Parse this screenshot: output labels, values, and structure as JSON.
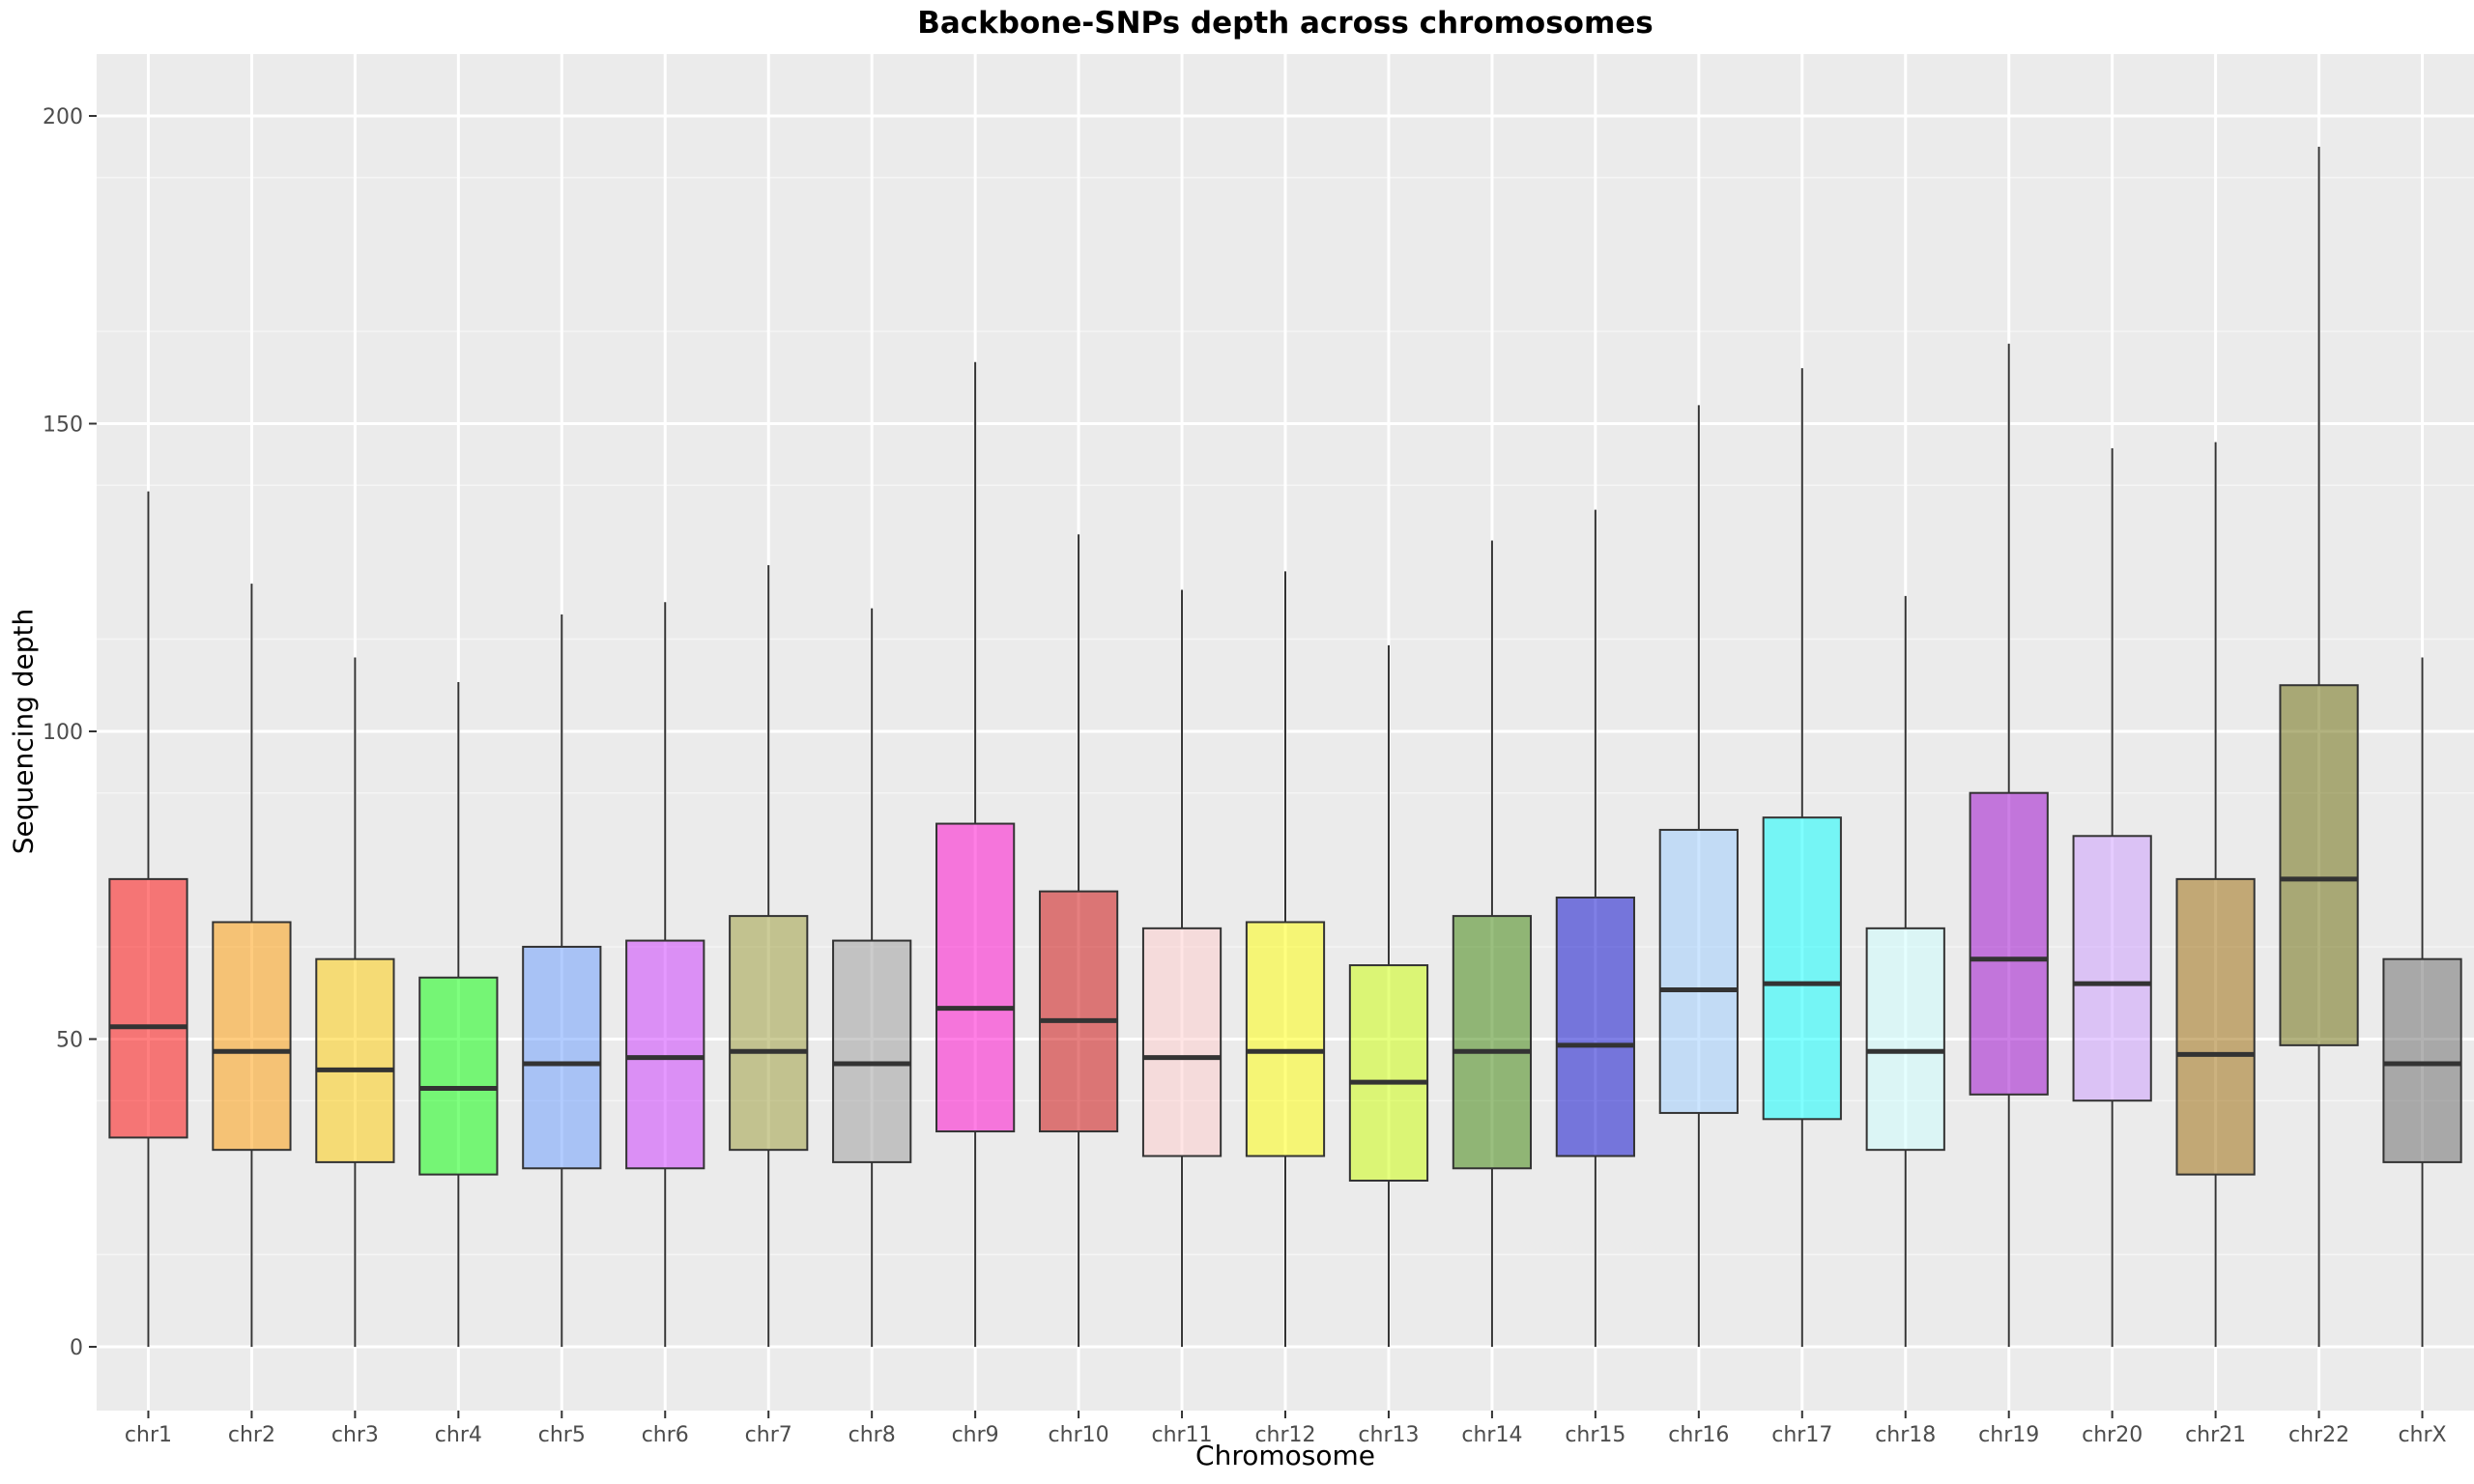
{
  "chart_data": {
    "type": "box",
    "title": "Backbone-SNPs depth across chromosomes",
    "xlabel": "Chromosome",
    "ylabel": "Sequencing depth",
    "ylim": [
      -10,
      200
    ],
    "yticks": [
      0,
      50,
      100,
      150,
      200
    ],
    "grid": true,
    "legend": "none",
    "box_alpha": 0.5,
    "categories": [
      "chr1",
      "chr2",
      "chr3",
      "chr4",
      "chr5",
      "chr6",
      "chr7",
      "chr8",
      "chr9",
      "chr10",
      "chr11",
      "chr12",
      "chr13",
      "chr14",
      "chr15",
      "chr16",
      "chr17",
      "chr18",
      "chr19",
      "chr20",
      "chr21",
      "chr22",
      "chrX"
    ],
    "boxes": [
      {
        "min": 0,
        "q1": 34,
        "median": 52,
        "q3": 76,
        "max": 139,
        "color": "#ff0000"
      },
      {
        "min": 0,
        "q1": 32,
        "median": 48,
        "q3": 69,
        "max": 124,
        "color": "#ff9900"
      },
      {
        "min": 0,
        "q1": 30,
        "median": 45,
        "q3": 63,
        "max": 112,
        "color": "#ffcc00"
      },
      {
        "min": 0,
        "q1": 28,
        "median": 42,
        "q3": 60,
        "max": 108,
        "color": "#00ff00"
      },
      {
        "min": 0,
        "q1": 29,
        "median": 46,
        "q3": 65,
        "max": 119,
        "color": "#6699ff"
      },
      {
        "min": 0,
        "q1": 29,
        "median": 47,
        "q3": 66,
        "max": 121,
        "color": "#cc33ff"
      },
      {
        "min": 0,
        "q1": 32,
        "median": 48,
        "q3": 70,
        "max": 127,
        "color": "#999933"
      },
      {
        "min": 0,
        "q1": 30,
        "median": 46,
        "q3": 66,
        "max": 120,
        "color": "#999999"
      },
      {
        "min": 0,
        "q1": 35,
        "median": 55,
        "q3": 85,
        "max": 160,
        "color": "#ff00cc"
      },
      {
        "min": 0,
        "q1": 35,
        "median": 53,
        "q3": 74,
        "max": 132,
        "color": "#cc0000"
      },
      {
        "min": 0,
        "q1": 31,
        "median": 47,
        "q3": 68,
        "max": 123,
        "color": "#ffcccc"
      },
      {
        "min": 0,
        "q1": 31,
        "median": 48,
        "q3": 69,
        "max": 126,
        "color": "#ffff00"
      },
      {
        "min": 0,
        "q1": 27,
        "median": 43,
        "q3": 62,
        "max": 114,
        "color": "#ccff00"
      },
      {
        "min": 0,
        "q1": 29,
        "median": 48,
        "q3": 70,
        "max": 131,
        "color": "#358000"
      },
      {
        "min": 0,
        "q1": 31,
        "median": 49,
        "q3": 73,
        "max": 136,
        "color": "#0000cc"
      },
      {
        "min": 0,
        "q1": 38,
        "median": 58,
        "q3": 84,
        "max": 153,
        "color": "#99ccff"
      },
      {
        "min": 0,
        "q1": 37,
        "median": 59,
        "q3": 86,
        "max": 159,
        "color": "#00ffff"
      },
      {
        "min": 0,
        "q1": 32,
        "median": 48,
        "q3": 68,
        "max": 122,
        "color": "#ccffff"
      },
      {
        "min": 0,
        "q1": 41,
        "median": 63,
        "q3": 90,
        "max": 163,
        "color": "#9900cc"
      },
      {
        "min": 0,
        "q1": 40,
        "median": 59,
        "q3": 83,
        "max": 146,
        "color": "#cc99ff"
      },
      {
        "min": 0,
        "q1": 28,
        "median": 47.5,
        "q3": 76,
        "max": 147,
        "color": "#996600"
      },
      {
        "min": 0,
        "q1": 49,
        "median": 76,
        "q3": 107.5,
        "max": 195,
        "color": "#666600"
      },
      {
        "min": 0,
        "q1": 30,
        "median": 46,
        "q3": 63,
        "max": 112,
        "color": "#666666"
      }
    ]
  }
}
